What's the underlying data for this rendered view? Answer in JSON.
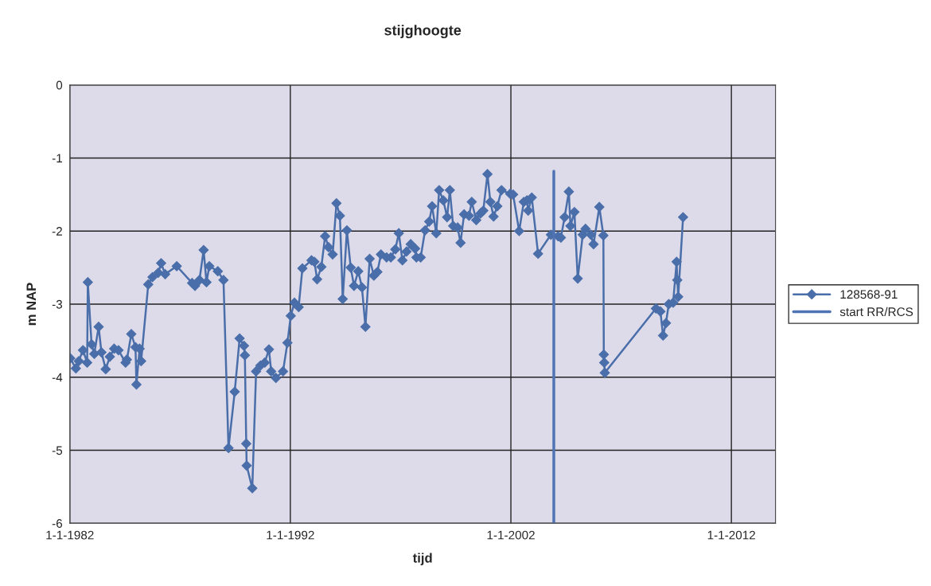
{
  "chart_data": {
    "type": "line",
    "title": "stijghoogte",
    "xlabel": "tijd",
    "ylabel": "m NAP",
    "xlim": [
      "1982-01-01",
      "2014-01-01"
    ],
    "xticks": [
      {
        "value": "1982-01-01",
        "label": "1-1-1982"
      },
      {
        "value": "1992-01-01",
        "label": "1-1-1992"
      },
      {
        "value": "2002-01-01",
        "label": "1-1-2002"
      },
      {
        "value": "2012-01-01",
        "label": "1-1-2012"
      }
    ],
    "ylim": [
      -6,
      0
    ],
    "yticks": [
      -6,
      -5,
      -4,
      -3,
      -2,
      -1,
      0
    ],
    "grid": true,
    "legend": "right",
    "series": [
      {
        "name": "128568-91",
        "color": "#4a6ea9",
        "marker": "diamond",
        "line_style": "solid",
        "x": [
          "1982-01-08",
          "1982-04-11",
          "1982-05-29",
          "1982-08-07",
          "1982-10-15",
          "1982-10-26",
          "1982-12-27",
          "1983-02-10",
          "1983-04-23",
          "1983-06-09",
          "1983-08-18",
          "1983-10-26",
          "1984-01-05",
          "1984-03-17",
          "1984-07-12",
          "1984-08-03",
          "1984-10-15",
          "1984-12-24",
          "1985-01-08",
          "1985-03-02",
          "1985-03-27",
          "1985-07-23",
          "1985-10-01",
          "1986-01-05",
          "1986-02-21",
          "1986-04-29",
          "1986-11-07",
          "1987-07-19",
          "1987-09-06",
          "1987-11-18",
          "1988-01-26",
          "1988-03-13",
          "1988-04-29",
          "1988-09-17",
          "1988-12-20",
          "1989-03-13",
          "1989-06-24",
          "1989-09-13",
          "1989-11-25",
          "1989-12-09",
          "1990-01-01",
          "1990-01-08",
          "1990-04-11",
          "1990-06-13",
          "1990-08-25",
          "1990-11-03",
          "1991-01-12",
          "1991-02-18",
          "1991-05-07",
          "1991-09-02",
          "1991-11-14",
          "1992-01-08",
          "1992-03-09",
          "1992-05-18",
          "1992-07-19",
          "1992-12-17",
          "1993-02-03",
          "1993-03-20",
          "1993-05-29",
          "1993-07-30",
          "1993-09-24",
          "1993-12-02",
          "1994-02-03",
          "1994-04-01",
          "1994-05-18",
          "1994-07-26",
          "1994-09-27",
          "1994-11-21",
          "1995-01-30",
          "1995-04-01",
          "1995-05-29",
          "1995-08-07",
          "1995-10-15",
          "1995-12-13",
          "1996-02-10",
          "1996-05-14",
          "1996-07-23",
          "1996-10-05",
          "1996-12-02",
          "1997-01-30",
          "1997-04-08",
          "1997-06-17",
          "1997-08-29",
          "1997-09-20",
          "1997-11-29",
          "1998-02-10",
          "1998-04-19",
          "1998-06-06",
          "1998-08-14",
          "1998-10-01",
          "1998-12-09",
          "1999-02-10",
          "1999-03-27",
          "1999-05-21",
          "1999-08-03",
          "1999-09-20",
          "1999-11-18",
          "2000-02-07",
          "2000-03-24",
          "2000-06-06",
          "2000-08-14",
          "2000-10-01",
          "2000-12-09",
          "2001-01-26",
          "2001-03-20",
          "2001-05-21",
          "2001-07-30",
          "2001-12-20",
          "2002-02-07",
          "2002-05-18",
          "2002-08-03",
          "2002-09-24",
          "2002-10-15",
          "2002-12-13",
          "2003-03-27",
          "2003-10-26",
          "2004-02-21",
          "2004-04-08",
          "2004-06-09",
          "2004-08-18",
          "2004-09-13",
          "2004-11-18",
          "2005-01-12",
          "2005-04-05",
          "2005-05-21",
          "2005-08-18",
          "2005-10-01",
          "2006-01-05",
          "2006-03-13",
          "2006-03-20",
          "2006-03-27",
          "2006-04-05",
          "2008-07-30",
          "2008-10-12",
          "2008-11-25",
          "2009-01-12",
          "2009-02-28",
          "2009-05-11",
          "2009-07-08",
          "2009-07-19",
          "2009-08-03",
          "2009-10-23"
        ],
        "values": [
          -3.74,
          -3.88,
          -3.78,
          -3.63,
          -3.8,
          -2.7,
          -3.55,
          -3.68,
          -3.31,
          -3.66,
          -3.89,
          -3.72,
          -3.61,
          -3.63,
          -3.8,
          -3.76,
          -3.41,
          -3.59,
          -4.1,
          -3.61,
          -3.78,
          -2.73,
          -2.63,
          -2.57,
          -2.44,
          -2.59,
          -2.48,
          -2.71,
          -2.75,
          -2.67,
          -2.26,
          -2.7,
          -2.48,
          -2.55,
          -2.67,
          -4.97,
          -4.2,
          -3.47,
          -3.57,
          -3.7,
          -4.91,
          -5.21,
          -5.52,
          -3.92,
          -3.84,
          -3.8,
          -3.62,
          -3.92,
          -4.01,
          -3.92,
          -3.53,
          -3.16,
          -2.98,
          -3.04,
          -2.51,
          -2.4,
          -2.42,
          -2.66,
          -2.49,
          -2.07,
          -2.22,
          -2.32,
          -1.62,
          -1.79,
          -2.93,
          -1.99,
          -2.5,
          -2.75,
          -2.55,
          -2.77,
          -3.31,
          -2.38,
          -2.61,
          -2.56,
          -2.32,
          -2.36,
          -2.36,
          -2.25,
          -2.03,
          -2.4,
          -2.28,
          -2.18,
          -2.24,
          -2.36,
          -2.36,
          -1.99,
          -1.87,
          -1.66,
          -2.03,
          -1.44,
          -1.58,
          -1.81,
          -1.44,
          -1.93,
          -1.95,
          -2.16,
          -1.77,
          -1.79,
          -1.6,
          -1.85,
          -1.76,
          -1.72,
          -1.22,
          -1.6,
          -1.8,
          -1.66,
          -1.44,
          -1.49,
          -1.5,
          -2.0,
          -1.6,
          -1.58,
          -1.72,
          -1.54,
          -2.31,
          -2.05,
          -2.07,
          -2.09,
          -1.81,
          -1.46,
          -1.93,
          -1.74,
          -2.65,
          -2.05,
          -1.97,
          -2.05,
          -2.18,
          -1.67,
          -2.06,
          -3.69,
          -3.8,
          -3.94,
          -3.06,
          -3.1,
          -3.43,
          -3.26,
          -3.0,
          -2.98,
          -2.42,
          -2.67,
          -2.9,
          -1.81
        ]
      },
      {
        "name": "start RR/RCS",
        "color": "#4f73b3",
        "marker": "none",
        "line_style": "solid",
        "x": [
          "2003-12-13",
          "2003-12-13"
        ],
        "values": [
          -6,
          -1.18
        ]
      }
    ]
  }
}
